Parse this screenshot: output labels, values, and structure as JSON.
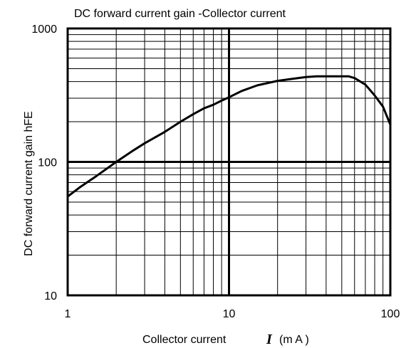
{
  "chart_data": {
    "type": "line",
    "title": "DC forward current gain -Collector current",
    "xlabel": "Collector current",
    "xlabel_symbol": "I",
    "xlabel_unit_text": "(m A )",
    "ylabel": "DC  forward current gain   hFE",
    "x_scale": "log",
    "y_scale": "log",
    "xlim": [
      1,
      100
    ],
    "ylim": [
      10,
      1000
    ],
    "x_ticks": [
      "1",
      "10",
      "100"
    ],
    "y_ticks": [
      "10",
      "100",
      "1000"
    ],
    "grid": true,
    "series": [
      {
        "x": [
          1,
          1.2,
          1.5,
          2,
          2.5,
          3,
          4,
          5,
          6,
          7,
          8,
          9,
          10,
          12,
          15,
          20,
          25,
          30,
          35,
          40,
          50,
          55,
          60,
          70,
          80,
          90,
          100
        ],
        "y": [
          55,
          65,
          78,
          100,
          120,
          138,
          168,
          200,
          228,
          252,
          268,
          288,
          305,
          340,
          375,
          405,
          420,
          432,
          438,
          438,
          438,
          438,
          425,
          380,
          315,
          260,
          190
        ]
      }
    ]
  }
}
